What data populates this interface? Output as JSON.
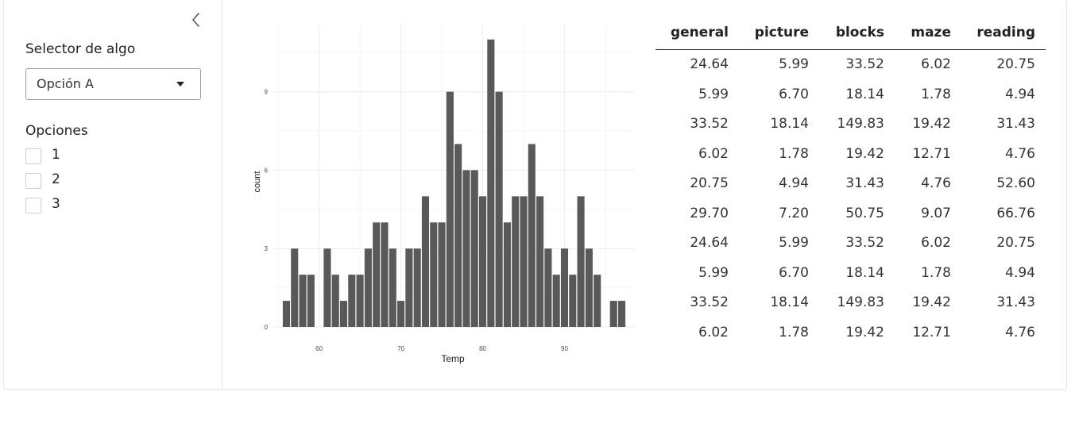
{
  "sidebar": {
    "collapse_icon": "chevron-left-icon",
    "selector_label": "Selector de algo",
    "selector_value": "Opción A",
    "options_label": "Opciones",
    "checkboxes": [
      {
        "label": "1",
        "checked": false
      },
      {
        "label": "2",
        "checked": false
      },
      {
        "label": "3",
        "checked": false
      }
    ]
  },
  "chart_data": {
    "type": "bar",
    "title": "",
    "xlabel": "Temp",
    "ylabel": "count",
    "xlim": [
      54.5,
      98.5
    ],
    "ylim": [
      0,
      11.6
    ],
    "x_ticks": [
      60,
      70,
      80,
      90
    ],
    "y_ticks": [
      0,
      3,
      6,
      9
    ],
    "bar_color": "#595959",
    "grid": true,
    "bins": [
      {
        "x": 56,
        "count": 1
      },
      {
        "x": 57,
        "count": 3
      },
      {
        "x": 58,
        "count": 2
      },
      {
        "x": 59,
        "count": 2
      },
      {
        "x": 60,
        "count": 0
      },
      {
        "x": 61,
        "count": 3
      },
      {
        "x": 62,
        "count": 2
      },
      {
        "x": 63,
        "count": 1
      },
      {
        "x": 64,
        "count": 2
      },
      {
        "x": 65,
        "count": 2
      },
      {
        "x": 66,
        "count": 3
      },
      {
        "x": 67,
        "count": 4
      },
      {
        "x": 68,
        "count": 4
      },
      {
        "x": 69,
        "count": 3
      },
      {
        "x": 70,
        "count": 1
      },
      {
        "x": 71,
        "count": 3
      },
      {
        "x": 72,
        "count": 3
      },
      {
        "x": 73,
        "count": 5
      },
      {
        "x": 74,
        "count": 4
      },
      {
        "x": 75,
        "count": 4
      },
      {
        "x": 76,
        "count": 9
      },
      {
        "x": 77,
        "count": 7
      },
      {
        "x": 78,
        "count": 6
      },
      {
        "x": 79,
        "count": 6
      },
      {
        "x": 80,
        "count": 5
      },
      {
        "x": 81,
        "count": 11
      },
      {
        "x": 82,
        "count": 9
      },
      {
        "x": 83,
        "count": 4
      },
      {
        "x": 84,
        "count": 5
      },
      {
        "x": 85,
        "count": 5
      },
      {
        "x": 86,
        "count": 7
      },
      {
        "x": 87,
        "count": 5
      },
      {
        "x": 88,
        "count": 3
      },
      {
        "x": 89,
        "count": 2
      },
      {
        "x": 90,
        "count": 3
      },
      {
        "x": 91,
        "count": 2
      },
      {
        "x": 92,
        "count": 5
      },
      {
        "x": 93,
        "count": 3
      },
      {
        "x": 94,
        "count": 2
      },
      {
        "x": 95,
        "count": 0
      },
      {
        "x": 96,
        "count": 1
      },
      {
        "x": 97,
        "count": 1
      }
    ]
  },
  "table": {
    "columns": [
      "general",
      "picture",
      "blocks",
      "maze",
      "reading"
    ],
    "rows": [
      [
        "24.64",
        "5.99",
        "33.52",
        "6.02",
        "20.75"
      ],
      [
        "5.99",
        "6.70",
        "18.14",
        "1.78",
        "4.94"
      ],
      [
        "33.52",
        "18.14",
        "149.83",
        "19.42",
        "31.43"
      ],
      [
        "6.02",
        "1.78",
        "19.42",
        "12.71",
        "4.76"
      ],
      [
        "20.75",
        "4.94",
        "31.43",
        "4.76",
        "52.60"
      ],
      [
        "29.70",
        "7.20",
        "50.75",
        "9.07",
        "66.76"
      ],
      [
        "24.64",
        "5.99",
        "33.52",
        "6.02",
        "20.75"
      ],
      [
        "5.99",
        "6.70",
        "18.14",
        "1.78",
        "4.94"
      ],
      [
        "33.52",
        "18.14",
        "149.83",
        "19.42",
        "31.43"
      ],
      [
        "6.02",
        "1.78",
        "19.42",
        "12.71",
        "4.76"
      ]
    ]
  }
}
